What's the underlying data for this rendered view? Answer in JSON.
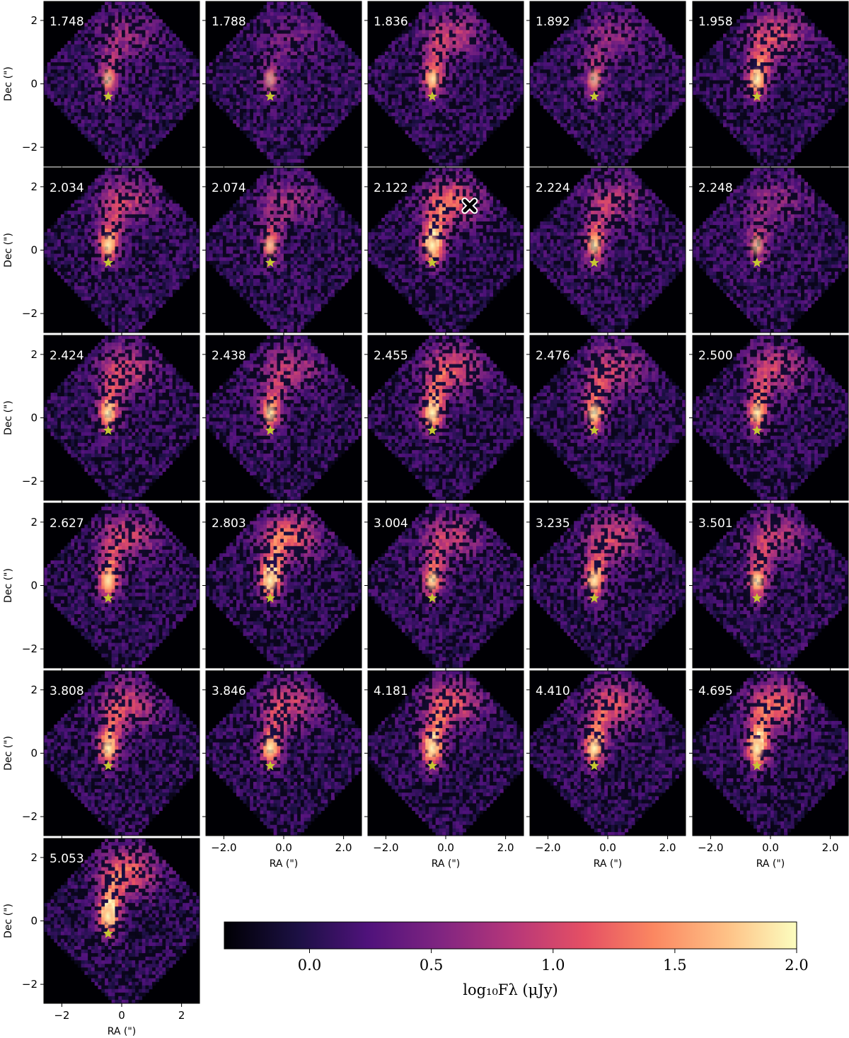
{
  "chart_data": {
    "type": "heatmap",
    "title": "",
    "xlabel": "RA (\")",
    "ylabel": "Dec (\")",
    "xlim": [
      -2.6,
      2.6
    ],
    "ylim": [
      -2.6,
      2.6
    ],
    "panels": [
      {
        "label": "1.748",
        "wavelength": 1.748,
        "intensity": 0.42
      },
      {
        "label": "1.788",
        "wavelength": 1.788,
        "intensity": 0.25
      },
      {
        "label": "1.836",
        "wavelength": 1.836,
        "intensity": 0.62
      },
      {
        "label": "1.892",
        "wavelength": 1.892,
        "intensity": 0.38
      },
      {
        "label": "1.958",
        "wavelength": 1.958,
        "intensity": 0.78
      },
      {
        "label": "2.034",
        "wavelength": 2.034,
        "intensity": 0.66
      },
      {
        "label": "2.074",
        "wavelength": 2.074,
        "intensity": 0.45
      },
      {
        "label": "2.122",
        "wavelength": 2.122,
        "intensity": 0.95
      },
      {
        "label": "2.224",
        "wavelength": 2.224,
        "intensity": 0.6
      },
      {
        "label": "2.248",
        "wavelength": 2.248,
        "intensity": 0.4
      },
      {
        "label": "2.424",
        "wavelength": 2.424,
        "intensity": 0.7
      },
      {
        "label": "2.438",
        "wavelength": 2.438,
        "intensity": 0.6
      },
      {
        "label": "2.455",
        "wavelength": 2.455,
        "intensity": 0.85
      },
      {
        "label": "2.476",
        "wavelength": 2.476,
        "intensity": 0.7
      },
      {
        "label": "2.500",
        "wavelength": 2.5,
        "intensity": 0.68
      },
      {
        "label": "2.627",
        "wavelength": 2.627,
        "intensity": 0.7
      },
      {
        "label": "2.803",
        "wavelength": 2.803,
        "intensity": 0.95
      },
      {
        "label": "3.004",
        "wavelength": 3.004,
        "intensity": 0.62
      },
      {
        "label": "3.235",
        "wavelength": 3.235,
        "intensity": 0.72
      },
      {
        "label": "3.501",
        "wavelength": 3.501,
        "intensity": 0.62
      },
      {
        "label": "3.808",
        "wavelength": 3.808,
        "intensity": 0.75
      },
      {
        "label": "3.846",
        "wavelength": 3.846,
        "intensity": 0.72
      },
      {
        "label": "4.181",
        "wavelength": 4.181,
        "intensity": 0.88
      },
      {
        "label": "4.410",
        "wavelength": 4.41,
        "intensity": 0.8
      },
      {
        "label": "4.695",
        "wavelength": 4.695,
        "intensity": 0.95
      },
      {
        "label": "5.053",
        "wavelength": 5.053,
        "intensity": 0.95
      }
    ],
    "marker_star": {
      "ra": -0.45,
      "dec": -0.4,
      "color": "#c8c832"
    },
    "marker_cross": {
      "panel": "2.122",
      "ra": 0.8,
      "dec": 1.4
    },
    "yticks": [
      2,
      0,
      -2
    ],
    "yticklabels": [
      "2",
      "0",
      "−2"
    ],
    "xticks_grid": [
      -2,
      0,
      2
    ],
    "xticklabels_grid": [
      "−2.0",
      "0.0",
      "2.0"
    ],
    "xticks_last": [
      -2,
      0,
      2
    ],
    "xticklabels_last": [
      "−2",
      "0",
      "2"
    ],
    "colorbar": {
      "label": "log₁₀Fλ (μJy)",
      "range": [
        -0.35,
        2.0
      ],
      "ticks": [
        0.0,
        0.5,
        1.0,
        1.5,
        2.0
      ],
      "ticklabels": [
        "0.0",
        "0.5",
        "1.0",
        "1.5",
        "2.0"
      ],
      "colormap": "magma"
    }
  },
  "colors": {
    "background": "#000004",
    "star": "#c8c832"
  }
}
